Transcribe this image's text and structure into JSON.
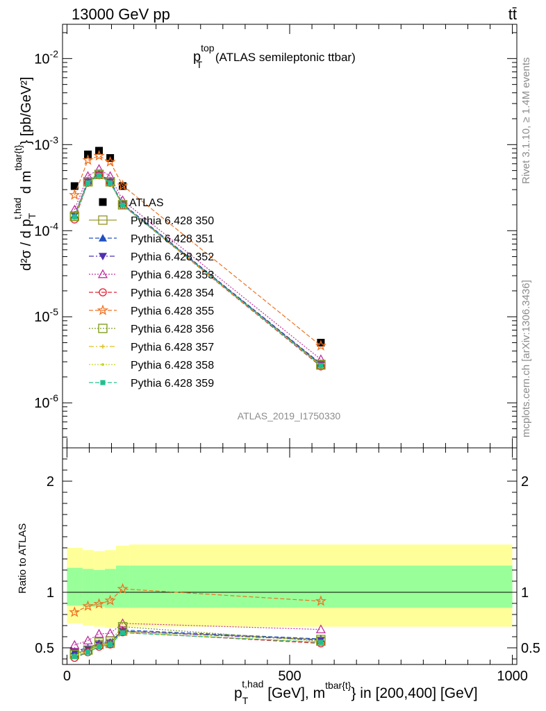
{
  "header": {
    "left": "13000 GeV pp",
    "right": "tt̄"
  },
  "title": {
    "main": "p",
    "sup": "top",
    "sub": "T",
    "rest": " (ATLAS semileptonic ttbar)"
  },
  "side_labels": {
    "rivet": "Rivet 3.1.10, ≥ 1.4M events",
    "mcplots": "mcplots.cern.ch [arXiv:1306.3436]"
  },
  "watermark": "ATLAS_2019_I1750330",
  "axis_labels": {
    "y_main": "d²σ / d p_T^{t,had} d m^{tbar{t}} [pb/GeV²]",
    "y_ratio": "Ratio to ATLAS",
    "x": "p_T^{t,had} [GeV], m^{tbar{t}} in [200,400] [GeV]"
  },
  "chart_data": [
    {
      "panel": "main",
      "type": "scatter",
      "yscale": "log",
      "xlim": [
        -10,
        1010
      ],
      "ylim": [
        3e-07,
        0.025
      ],
      "y_ticks": [
        {
          "value": 1e-06,
          "exp": "-6"
        },
        {
          "value": 1e-05,
          "exp": "-5"
        },
        {
          "value": 0.0001,
          "exp": "-4"
        },
        {
          "value": 0.001,
          "exp": "-3"
        },
        {
          "value": 0.01,
          "exp": "-2"
        }
      ],
      "x": [
        17,
        47,
        72,
        97,
        125,
        570
      ],
      "legend_position": "center-left",
      "series": [
        {
          "name": "ATLAS",
          "marker": "square-filled",
          "color": "#000000",
          "line": "none",
          "values": [
            0.00033,
            0.00077,
            0.00085,
            0.0007,
            0.00033,
            5e-06
          ]
        },
        {
          "name": "Pythia 6.428 350",
          "marker": "square-open",
          "color": "#999933",
          "line": "solid",
          "values": [
            0.000148,
            0.00037,
            0.00045,
            0.00037,
            0.0002,
            2.8e-06
          ]
        },
        {
          "name": "Pythia 6.428 351",
          "marker": "triangle-up-filled",
          "color": "#2050c0",
          "line": "dashed",
          "values": [
            0.000152,
            0.00038,
            0.00046,
            0.00038,
            0.000205,
            2.85e-06
          ]
        },
        {
          "name": "Pythia 6.428 352",
          "marker": "triangle-down-filled",
          "color": "#5030b0",
          "line": "dashdot",
          "values": [
            0.00015,
            0.00037,
            0.00045,
            0.00037,
            0.000202,
            2.8e-06
          ]
        },
        {
          "name": "Pythia 6.428 353",
          "marker": "triangle-up-open",
          "color": "#c030a0",
          "line": "dotted",
          "values": [
            0.000175,
            0.00043,
            0.00052,
            0.00043,
            0.000225,
            3.2e-06
          ]
        },
        {
          "name": "Pythia 6.428 354",
          "marker": "circle-open",
          "color": "#e02030",
          "line": "dashed",
          "values": [
            0.000135,
            0.00036,
            0.00044,
            0.00036,
            0.000198,
            2.65e-06
          ]
        },
        {
          "name": "Pythia 6.428 355",
          "marker": "star-open",
          "color": "#f07020",
          "line": "dashed",
          "values": [
            0.00026,
            0.00066,
            0.00074,
            0.00063,
            0.000335,
            4.6e-06
          ]
        },
        {
          "name": "Pythia 6.428 356",
          "marker": "square-open",
          "color": "#80a020",
          "line": "dotted",
          "values": [
            0.000146,
            0.00037,
            0.00045,
            0.00037,
            0.0002,
            2.75e-06
          ]
        },
        {
          "name": "Pythia 6.428 357",
          "marker": "cross-small",
          "color": "#e0c020",
          "line": "dashdot",
          "values": [
            0.000145,
            0.00036,
            0.00044,
            0.00036,
            0.000199,
            2.72e-06
          ]
        },
        {
          "name": "Pythia 6.428 358",
          "marker": "dot-small",
          "color": "#c8d820",
          "line": "dotted",
          "values": [
            0.000145,
            0.00036,
            0.00044,
            0.00036,
            0.000199,
            2.72e-06
          ]
        },
        {
          "name": "Pythia 6.428 359",
          "marker": "square-filled-small",
          "color": "#20c090",
          "line": "dashed",
          "values": [
            0.000145,
            0.00036,
            0.00044,
            0.00036,
            0.000199,
            2.72e-06
          ]
        }
      ]
    },
    {
      "panel": "ratio",
      "type": "line",
      "xlim": [
        -10,
        1010
      ],
      "ylim": [
        0.35,
        2.3
      ],
      "y_ticks": [
        0.5,
        1,
        2
      ],
      "y_tick_labels": [
        "0.5",
        "1",
        "2"
      ],
      "x_ticks": [
        0,
        500,
        1000
      ],
      "x_tick_labels": [
        "0",
        "500",
        "1000"
      ],
      "reference_line": 1,
      "bands": {
        "x_edges": [
          0,
          35,
          60,
          85,
          110,
          140,
          1000
        ],
        "outer": {
          "color": "#ffff99",
          "lower": [
            0.72,
            0.7,
            0.69,
            0.68,
            0.69,
            0.69
          ],
          "upper": [
            1.4,
            1.38,
            1.37,
            1.38,
            1.42,
            1.43
          ]
        },
        "inner": {
          "color": "#99ff99",
          "lower": [
            0.88,
            0.87,
            0.87,
            0.86,
            0.86,
            0.86
          ],
          "upper": [
            1.22,
            1.21,
            1.2,
            1.21,
            1.24,
            1.24
          ]
        }
      },
      "x": [
        17,
        47,
        72,
        97,
        125,
        570
      ],
      "series": [
        {
          "ref": "Pythia 6.428 350",
          "values": [
            0.45,
            0.48,
            0.53,
            0.54,
            0.65,
            0.575
          ]
        },
        {
          "ref": "Pythia 6.428 351",
          "values": [
            0.47,
            0.5,
            0.54,
            0.55,
            0.66,
            0.58
          ]
        },
        {
          "ref": "Pythia 6.428 352",
          "values": [
            0.46,
            0.49,
            0.53,
            0.54,
            0.65,
            0.57
          ]
        },
        {
          "ref": "Pythia 6.428 353",
          "values": [
            0.525,
            0.565,
            0.625,
            0.63,
            0.72,
            0.665
          ]
        },
        {
          "ref": "Pythia 6.428 354",
          "values": [
            0.41,
            0.46,
            0.51,
            0.53,
            0.64,
            0.54
          ]
        },
        {
          "ref": "Pythia 6.428 355",
          "values": [
            0.82,
            0.875,
            0.895,
            0.925,
            1.03,
            0.92
          ]
        },
        {
          "ref": "Pythia 6.428 356",
          "values": [
            0.44,
            0.48,
            0.55,
            0.56,
            0.69,
            0.56
          ]
        },
        {
          "ref": "Pythia 6.428 357",
          "values": [
            0.43,
            0.47,
            0.52,
            0.54,
            0.64,
            0.55
          ]
        },
        {
          "ref": "Pythia 6.428 358",
          "values": [
            0.43,
            0.47,
            0.52,
            0.54,
            0.64,
            0.55
          ]
        },
        {
          "ref": "Pythia 6.428 359",
          "values": [
            0.42,
            0.46,
            0.51,
            0.53,
            0.635,
            0.55
          ]
        }
      ]
    }
  ]
}
